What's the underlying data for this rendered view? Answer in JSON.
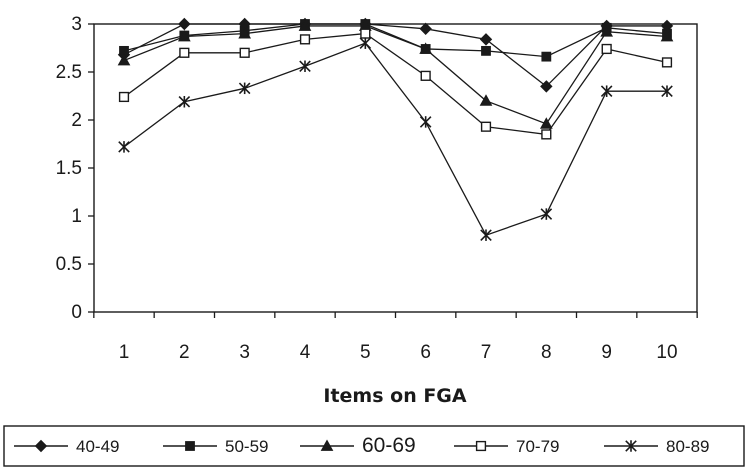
{
  "chart_data": {
    "type": "line",
    "title": "",
    "xlabel": "Items on FGA",
    "ylabel": "",
    "categories": [
      "1",
      "2",
      "3",
      "4",
      "5",
      "6",
      "7",
      "8",
      "9",
      "10"
    ],
    "ylim": [
      0,
      3
    ],
    "yticks": [
      "0",
      "0.5",
      "1",
      "1.5",
      "2",
      "2.5",
      "3"
    ],
    "grid": false,
    "legend_position": "bottom",
    "series": [
      {
        "name": "40-49",
        "marker": "diamond-filled",
        "values": [
          2.68,
          3.0,
          3.0,
          3.0,
          3.0,
          2.95,
          2.84,
          2.35,
          2.98,
          2.98
        ]
      },
      {
        "name": "50-59",
        "marker": "square-filled",
        "values": [
          2.72,
          2.88,
          2.93,
          3.0,
          3.0,
          2.74,
          2.72,
          2.66,
          2.96,
          2.9
        ]
      },
      {
        "name": "60-69",
        "marker": "triangle-filled",
        "values": [
          2.62,
          2.87,
          2.9,
          2.98,
          2.98,
          2.74,
          2.2,
          1.96,
          2.92,
          2.87
        ]
      },
      {
        "name": "70-79",
        "marker": "square-open",
        "values": [
          2.24,
          2.7,
          2.7,
          2.84,
          2.9,
          2.46,
          1.93,
          1.85,
          2.74,
          2.6
        ]
      },
      {
        "name": "80-89",
        "marker": "star",
        "values": [
          1.72,
          2.19,
          2.33,
          2.56,
          2.8,
          1.98,
          0.8,
          1.02,
          2.3,
          2.3
        ]
      }
    ]
  }
}
